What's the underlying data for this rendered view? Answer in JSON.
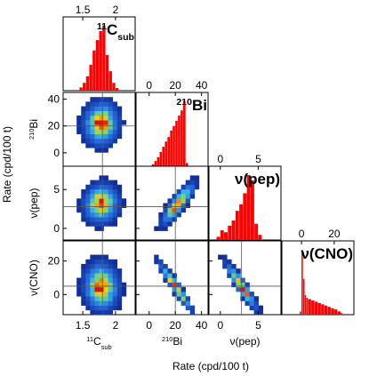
{
  "chart_data": {
    "type": "heatmap",
    "xlabel": "Rate (cpd/100 t)",
    "ylabel": "Rate (cpd/100 t)",
    "variables": [
      {
        "key": "c11",
        "label": "11Csub",
        "label_parts": {
          "sup": "11",
          "base": "C",
          "sub": "sub"
        },
        "range": [
          1.2,
          2.3
        ],
        "ticks": [
          1.5,
          2
        ],
        "crosshair": 1.8
      },
      {
        "key": "bi210",
        "label": "210Bi",
        "label_parts": {
          "sup": "210",
          "base": "Bi",
          "sub": ""
        },
        "range": [
          -10,
          45
        ],
        "ticks": [
          0,
          20,
          40
        ],
        "crosshair": 20
      },
      {
        "key": "pep",
        "label": "ν(pep)",
        "label_parts": {
          "sup": "",
          "base": "ν(pep)",
          "sub": ""
        },
        "range": [
          -1.5,
          8
        ],
        "ticks": [
          0,
          5
        ],
        "crosshair": 2.8
      },
      {
        "key": "cno",
        "label": "ν(CNO)",
        "label_parts": {
          "sup": "",
          "base": "ν(CNO)",
          "sub": ""
        },
        "range": [
          -12,
          32
        ],
        "ticks": [
          0,
          20
        ],
        "crosshair": 5
      }
    ],
    "diagonal_titles": [
      {
        "sup": "11",
        "base": "C",
        "sub": "sub"
      },
      {
        "sup": "210",
        "base": "Bi",
        "sub": ""
      },
      {
        "sup": "",
        "base": "ν(pep)",
        "sub": ""
      },
      {
        "sup": "",
        "base": "ν(CNO)",
        "sub": ""
      }
    ],
    "histograms": [
      {
        "var": "c11",
        "bins": [
          1.45,
          1.5,
          1.55,
          1.6,
          1.65,
          1.7,
          1.75,
          1.8,
          1.85,
          1.9,
          1.95,
          2.0
        ],
        "counts": [
          0.05,
          0.12,
          0.22,
          0.4,
          0.62,
          0.78,
          0.92,
          1.0,
          0.55,
          0.3,
          0.12,
          0.04
        ]
      },
      {
        "var": "bi210",
        "bins": [
          2,
          4,
          6,
          8,
          10,
          12,
          14,
          16,
          18,
          20,
          22,
          24,
          26,
          28
        ],
        "counts": [
          0.03,
          0.08,
          0.14,
          0.22,
          0.3,
          0.38,
          0.45,
          0.55,
          0.62,
          0.7,
          0.78,
          0.86,
          1.0,
          0.05
        ]
      },
      {
        "var": "pep",
        "bins": [
          -0.5,
          0,
          0.5,
          1,
          1.5,
          2,
          2.5,
          3,
          3.5,
          4,
          4.5,
          5
        ],
        "counts": [
          0.05,
          0.15,
          0.12,
          0.22,
          0.3,
          0.45,
          0.55,
          0.72,
          1.0,
          0.92,
          0.25,
          0.08
        ]
      },
      {
        "var": "cno",
        "bins": [
          -1,
          0,
          1,
          2,
          3,
          4,
          6,
          8,
          10,
          12,
          14,
          16,
          18,
          20,
          22,
          24
        ],
        "counts": [
          0.05,
          1.0,
          0.55,
          0.3,
          0.26,
          0.24,
          0.22,
          0.2,
          0.18,
          0.16,
          0.14,
          0.12,
          0.1,
          0.08,
          0.05,
          0.03
        ]
      }
    ],
    "scatter_panels": [
      {
        "x": "c11",
        "y": "bi210",
        "center": [
          1.78,
          22
        ],
        "spread": [
          0.15,
          9
        ],
        "corr": 0.05
      },
      {
        "x": "c11",
        "y": "pep",
        "center": [
          1.78,
          3.2
        ],
        "spread": [
          0.15,
          1.4
        ],
        "corr": 0.05
      },
      {
        "x": "bi210",
        "y": "pep",
        "center": [
          22,
          3.2
        ],
        "spread": [
          7,
          1.5
        ],
        "corr": 0.85
      },
      {
        "x": "c11",
        "y": "cno",
        "center": [
          1.78,
          5
        ],
        "spread": [
          0.15,
          8
        ],
        "corr": -0.05
      },
      {
        "x": "bi210",
        "y": "cno",
        "center": [
          20,
          5
        ],
        "spread": [
          7,
          8
        ],
        "corr": -0.95
      },
      {
        "x": "pep",
        "y": "cno",
        "center": [
          2.8,
          5
        ],
        "spread": [
          1.2,
          8
        ],
        "corr": -0.93
      }
    ],
    "colors": {
      "hist": "#ff0000",
      "heat_low": "#0c1e8a",
      "heat_mid": "#33b6e6",
      "heat_high": "#ffd200",
      "heat_peak": "#e01010",
      "crosshair": "#555555"
    },
    "grid": false,
    "legend": "none"
  }
}
